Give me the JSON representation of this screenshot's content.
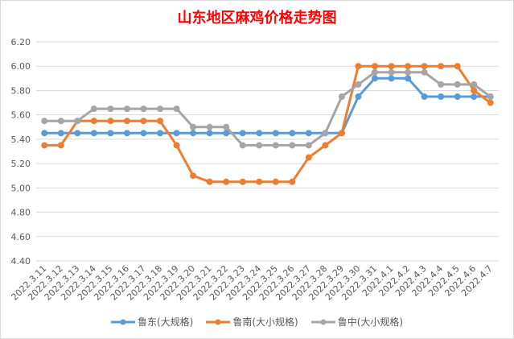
{
  "chart_data": {
    "type": "line",
    "title": "山东地区麻鸡价格走势图",
    "title_color": "#FF0000",
    "ylim": [
      4.4,
      6.2
    ],
    "y_ticks": [
      "4.40",
      "4.60",
      "4.80",
      "5.00",
      "5.20",
      "5.40",
      "5.60",
      "5.80",
      "6.00",
      "6.20"
    ],
    "categories": [
      "2022.3.11",
      "2022.3.12",
      "2022.3.13",
      "2022.3.14",
      "2022.3.15",
      "2022.3.16",
      "2022.3.17",
      "2022.3.18",
      "2022.3.19",
      "2022.3.20",
      "2022.3.21",
      "2022.3.22",
      "2022.3.23",
      "2022.3.24",
      "2022.3.25",
      "2022.3.26",
      "2022.3.27",
      "2022.3.28",
      "2022.3.29",
      "2022.3.30",
      "2022.3.31",
      "2022.4.1",
      "2022.4.2",
      "2022.4.3",
      "2022.4.4",
      "2022.4.5",
      "2022.4.6",
      "2022.4.7"
    ],
    "series": [
      {
        "name": "鲁东(大规格)",
        "color": "#5B9BD5",
        "values": [
          5.45,
          5.45,
          5.45,
          5.45,
          5.45,
          5.45,
          5.45,
          5.45,
          5.45,
          5.45,
          5.45,
          5.45,
          5.45,
          5.45,
          5.45,
          5.45,
          5.45,
          5.45,
          5.45,
          5.75,
          5.9,
          5.9,
          5.9,
          5.75,
          5.75,
          5.75,
          5.75,
          5.75
        ]
      },
      {
        "name": "鲁南(大小规格)",
        "color": "#ED7D31",
        "values": [
          5.35,
          5.35,
          5.55,
          5.55,
          5.55,
          5.55,
          5.55,
          5.55,
          5.35,
          5.1,
          5.05,
          5.05,
          5.05,
          5.05,
          5.05,
          5.05,
          5.25,
          5.35,
          5.45,
          6.0,
          6.0,
          6.0,
          6.0,
          6.0,
          6.0,
          6.0,
          5.8,
          5.7
        ]
      },
      {
        "name": "鲁中(大小规格)",
        "color": "#A5A5A5",
        "values": [
          5.55,
          5.55,
          5.55,
          5.65,
          5.65,
          5.65,
          5.65,
          5.65,
          5.65,
          5.5,
          5.5,
          5.5,
          5.35,
          5.35,
          5.35,
          5.35,
          5.35,
          5.45,
          5.75,
          5.85,
          5.95,
          5.95,
          5.95,
          5.95,
          5.85,
          5.85,
          5.85,
          5.75
        ]
      }
    ],
    "grid": true,
    "legend": "bottom"
  }
}
